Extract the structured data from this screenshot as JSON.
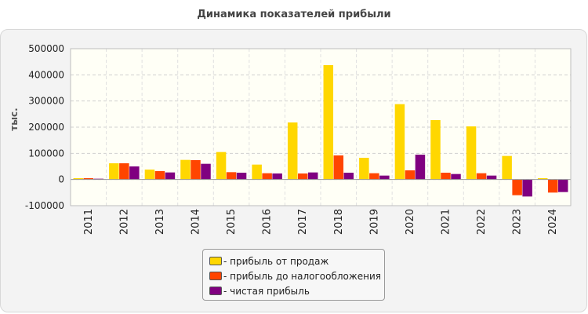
{
  "title": "Динамика показателей прибыли",
  "chart_data": {
    "type": "bar",
    "ylabel": "тыс.",
    "xlabel": "",
    "ylim": [
      -100000,
      500000
    ],
    "yticks": [
      500000,
      400000,
      300000,
      200000,
      100000,
      0,
      -100000
    ],
    "grid": true,
    "legend_position": "bottom",
    "categories": [
      "2011",
      "2012",
      "2013",
      "2014",
      "2015",
      "2016",
      "2017",
      "2018",
      "2019",
      "2020",
      "2021",
      "2022",
      "2023",
      "2024"
    ],
    "series": [
      {
        "name": "- прибыль от продаж",
        "color": "#ffd700",
        "values": [
          5000,
          62000,
          38000,
          75000,
          105000,
          57000,
          218000,
          437000,
          83000,
          288000,
          227000,
          203000,
          90000,
          5000
        ]
      },
      {
        "name": "- прибыль до налогообложения",
        "color": "#ff4500",
        "values": [
          5000,
          62000,
          32000,
          74000,
          28000,
          24000,
          23000,
          92000,
          24000,
          35000,
          26000,
          24000,
          -60000,
          -50000
        ]
      },
      {
        "name": "- чистая прибыль",
        "color": "#800080",
        "values": [
          3000,
          50000,
          27000,
          60000,
          26000,
          23000,
          27000,
          26000,
          15000,
          95000,
          21000,
          15000,
          -65000,
          -48000
        ]
      }
    ]
  }
}
